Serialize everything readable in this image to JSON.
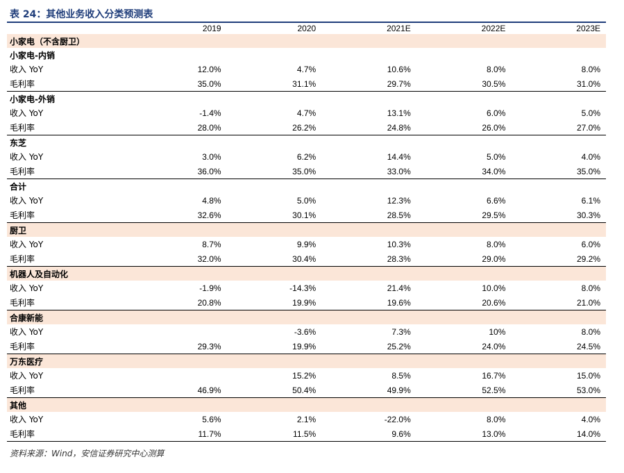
{
  "title": "表 24：其他业务收入分类预测表",
  "columns": [
    "2019",
    "2020",
    "2021E",
    "2022E",
    "2023E"
  ],
  "section_top": "小家电（不含厨卫）",
  "groups": [
    {
      "label": "小家电-内销",
      "shaded": false,
      "rows": [
        {
          "name": "收入 YoY",
          "values": [
            "12.0%",
            "4.7%",
            "10.6%",
            "8.0%",
            "8.0%"
          ]
        },
        {
          "name": "毛利率",
          "values": [
            "35.0%",
            "31.1%",
            "29.7%",
            "30.5%",
            "31.0%"
          ]
        }
      ]
    },
    {
      "label": "小家电-外销",
      "shaded": false,
      "rows": [
        {
          "name": "收入 YoY",
          "values": [
            "-1.4%",
            "4.7%",
            "13.1%",
            "6.0%",
            "5.0%"
          ]
        },
        {
          "name": "毛利率",
          "values": [
            "28.0%",
            "26.2%",
            "24.8%",
            "26.0%",
            "27.0%"
          ]
        }
      ]
    },
    {
      "label": "东芝",
      "shaded": false,
      "rows": [
        {
          "name": "收入 YoY",
          "values": [
            "3.0%",
            "6.2%",
            "14.4%",
            "5.0%",
            "4.0%"
          ]
        },
        {
          "name": "毛利率",
          "values": [
            "36.0%",
            "35.0%",
            "33.0%",
            "34.0%",
            "35.0%"
          ]
        }
      ]
    },
    {
      "label": "合计",
      "shaded": false,
      "rows": [
        {
          "name": "收入 YoY",
          "values": [
            "4.8%",
            "5.0%",
            "12.3%",
            "6.6%",
            "6.1%"
          ]
        },
        {
          "name": "毛利率",
          "values": [
            "32.6%",
            "30.1%",
            "28.5%",
            "29.5%",
            "30.3%"
          ]
        }
      ]
    },
    {
      "label": "厨卫",
      "shaded": true,
      "rows": [
        {
          "name": "收入 YoY",
          "values": [
            "8.7%",
            "9.9%",
            "10.3%",
            "8.0%",
            "6.0%"
          ]
        },
        {
          "name": "毛利率",
          "values": [
            "32.0%",
            "30.4%",
            "28.3%",
            "29.0%",
            "29.2%"
          ]
        }
      ]
    },
    {
      "label": "机器人及自动化",
      "shaded": true,
      "rows": [
        {
          "name": "收入 YoY",
          "values": [
            "-1.9%",
            "-14.3%",
            "21.4%",
            "10.0%",
            "8.0%"
          ]
        },
        {
          "name": "毛利率",
          "values": [
            "20.8%",
            "19.9%",
            "19.6%",
            "20.6%",
            "21.0%"
          ]
        }
      ]
    },
    {
      "label": "合康新能",
      "shaded": true,
      "rows": [
        {
          "name": "收入 YoY",
          "values": [
            "",
            "-3.6%",
            "7.3%",
            "10%",
            "8.0%"
          ]
        },
        {
          "name": "毛利率",
          "values": [
            "29.3%",
            "19.9%",
            "25.2%",
            "24.0%",
            "24.5%"
          ]
        }
      ]
    },
    {
      "label": "万东医疗",
      "shaded": true,
      "rows": [
        {
          "name": "收入 YoY",
          "values": [
            "",
            "15.2%",
            "8.5%",
            "16.7%",
            "15.0%"
          ]
        },
        {
          "name": "毛利率",
          "values": [
            "46.9%",
            "50.4%",
            "49.9%",
            "52.5%",
            "53.0%"
          ]
        }
      ]
    },
    {
      "label": "其他",
      "shaded": true,
      "rows": [
        {
          "name": "收入 YoY",
          "values": [
            "5.6%",
            "2.1%",
            "-22.0%",
            "8.0%",
            "4.0%"
          ]
        },
        {
          "name": "毛利率",
          "values": [
            "11.7%",
            "11.5%",
            "9.6%",
            "13.0%",
            "14.0%"
          ]
        }
      ]
    }
  ],
  "source": "资料来源：Wind，安信证券研究中心测算",
  "colors": {
    "title": "#1f3d7a",
    "section_fill": "#fbe6d8"
  }
}
